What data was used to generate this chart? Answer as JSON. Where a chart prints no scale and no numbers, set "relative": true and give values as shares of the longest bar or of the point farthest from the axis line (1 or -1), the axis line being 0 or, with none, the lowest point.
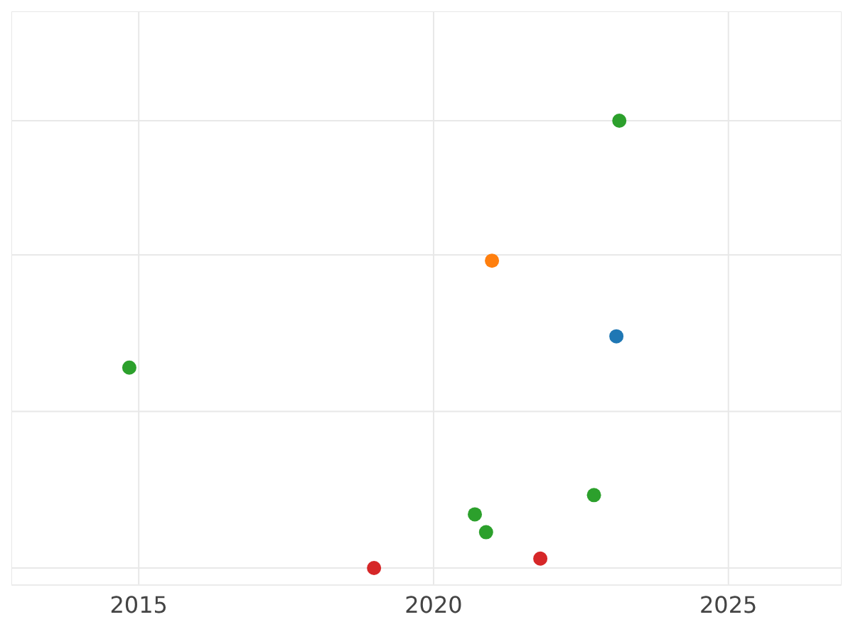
{
  "chart_data": {
    "type": "scatter",
    "relative": true,
    "x": [
      2023.15,
      2020.99,
      2023.1,
      2014.84,
      2022.72,
      2020.7,
      2020.89,
      2018.99,
      2021.81
    ],
    "values": [
      1,
      0.687,
      0.518,
      0.448,
      0.163,
      0.12,
      0.08,
      0,
      0.021
    ],
    "colors": [
      "#2ca02c",
      "#ff7f0e",
      "#1f77b4",
      "#2ca02c",
      "#2ca02c",
      "#2ca02c",
      "#2ca02c",
      "#d62728",
      "#d62728"
    ],
    "xlim": [
      2012.84,
      2026.92
    ],
    "xticks": [
      2015,
      2020,
      2025
    ],
    "grid": true,
    "marker": "circle",
    "legend": false
  }
}
